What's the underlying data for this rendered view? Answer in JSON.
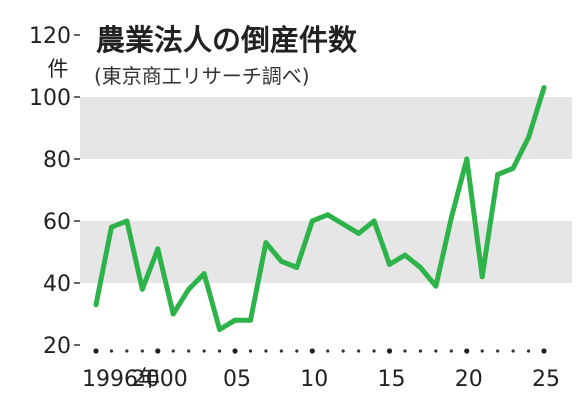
{
  "chart_data": {
    "type": "line",
    "title": "農業法人の倒産件数",
    "subtitle": "(東京商工リサーチ調べ)",
    "ylabel": "件",
    "ylim": [
      20,
      120
    ],
    "yticks": [
      20,
      40,
      60,
      80,
      100,
      120
    ],
    "x": [
      1996,
      1997,
      1998,
      1999,
      2000,
      2001,
      2002,
      2003,
      2004,
      2005,
      2006,
      2007,
      2008,
      2009,
      2010,
      2011,
      2012,
      2013,
      2014,
      2015,
      2016,
      2017,
      2018,
      2019,
      2020,
      2021,
      2022,
      2023,
      2024,
      2025
    ],
    "xticks": [
      {
        "x": 1996,
        "label": "1996年"
      },
      {
        "x": 2000,
        "label": "2000"
      },
      {
        "x": 2005,
        "label": "05"
      },
      {
        "x": 2010,
        "label": "10"
      },
      {
        "x": 2015,
        "label": "15"
      },
      {
        "x": 2020,
        "label": "20"
      },
      {
        "x": 2025,
        "label": "25"
      }
    ],
    "series": [
      {
        "values": [
          33,
          58,
          60,
          38,
          51,
          30,
          38,
          43,
          25,
          28,
          28,
          53,
          47,
          45,
          60,
          62,
          59,
          56,
          60,
          46,
          49,
          45,
          39,
          61,
          80,
          42,
          75,
          77,
          87,
          103
        ]
      }
    ],
    "grid": "alternating horizontal bands",
    "colors": {
      "line": "#2db34a",
      "band": "#e6e6e6"
    }
  }
}
